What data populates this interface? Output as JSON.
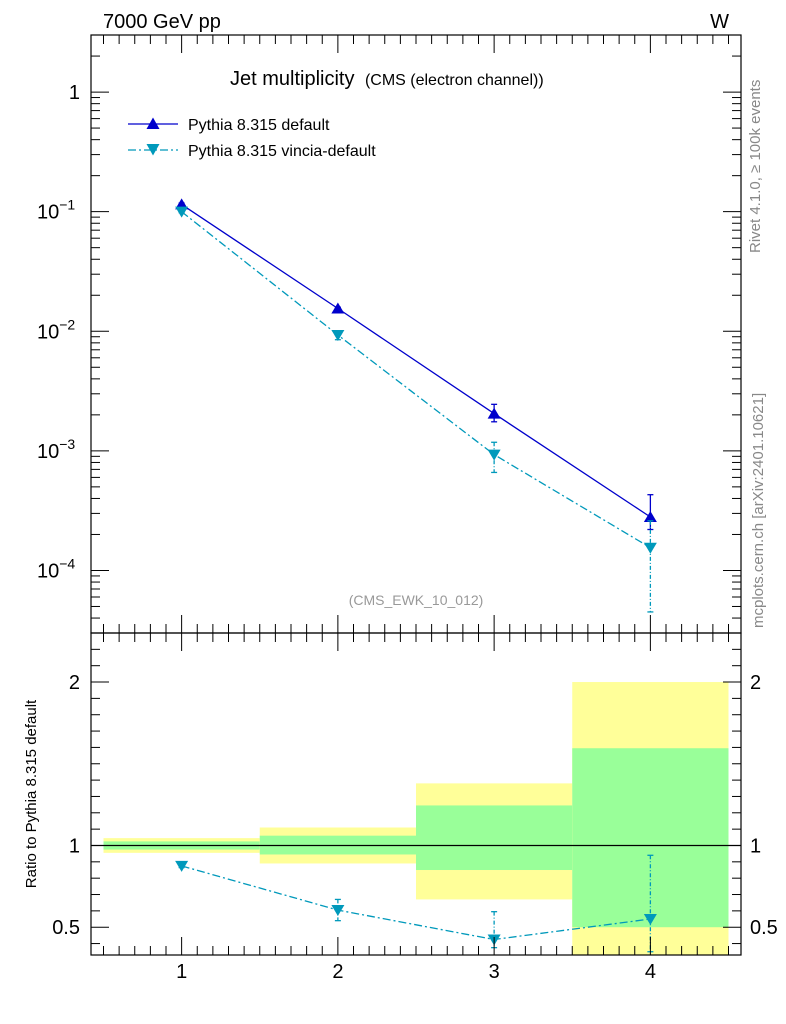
{
  "header": {
    "left": "7000 GeV pp",
    "right": "W"
  },
  "side_labels": {
    "rivet": "Rivet 4.1.0, ≥ 100k events",
    "mcplots": "mcplots.cern.ch [arXiv:2401.10621]"
  },
  "chart_data": [
    {
      "type": "line",
      "title": "Jet multiplicity",
      "subtitle": "(CMS (electron channel))",
      "watermark": "(CMS_EWK_10_012)",
      "xlabel": "",
      "ylabel": "",
      "yscale": "log",
      "xlim": [
        0.42,
        4.58
      ],
      "ylim": [
        3e-05,
        3.0
      ],
      "legend_position": "top-left",
      "y_ticks": [
        {
          "value": 1,
          "label": "1"
        },
        {
          "value": 0.1,
          "base": "10",
          "exp": "−1"
        },
        {
          "value": 0.01,
          "base": "10",
          "exp": "−2"
        },
        {
          "value": 0.001,
          "base": "10",
          "exp": "−3"
        },
        {
          "value": 0.0001,
          "base": "10",
          "exp": "−4"
        }
      ],
      "series": [
        {
          "name": "Pythia 8.315 default",
          "color": "#0000cc",
          "marker": "triangle-up",
          "line_style": "solid",
          "x": [
            1,
            2,
            3,
            4
          ],
          "values": [
            0.115,
            0.0155,
            0.00205,
            0.00028
          ],
          "err_low": [
            0.112,
            0.0151,
            0.00175,
            0.00022
          ],
          "err_high": [
            0.118,
            0.0159,
            0.00245,
            0.00043
          ]
        },
        {
          "name": "Pythia 8.315 vincia-default",
          "color": "#0099bb",
          "marker": "triangle-down",
          "line_style": "dashdot",
          "x": [
            1,
            2,
            3,
            4
          ],
          "values": [
            0.1,
            0.0093,
            0.00093,
            0.000155
          ],
          "err_low": [
            0.098,
            0.0085,
            0.00066,
            4.5e-05
          ],
          "err_high": [
            0.102,
            0.0101,
            0.00118,
            0.00026
          ]
        }
      ]
    },
    {
      "type": "line",
      "title": "",
      "xlabel": "",
      "ylabel": "Ratio to Pythia 8.315 default",
      "xlim": [
        0.42,
        4.58
      ],
      "ylim": [
        0.33,
        2.3
      ],
      "x_ticks": [
        1,
        2,
        3,
        4
      ],
      "y_ticks": [
        {
          "value": 0.5,
          "label": "0.5"
        },
        {
          "value": 1,
          "label": "1"
        },
        {
          "value": 2,
          "label": "2"
        }
      ],
      "reference_line": 1,
      "bands": [
        {
          "x0": 0.5,
          "x1": 1.5,
          "yellow": [
            0.955,
            1.045
          ],
          "green": [
            0.975,
            1.025
          ]
        },
        {
          "x0": 1.5,
          "x1": 2.5,
          "yellow": [
            0.89,
            1.11
          ],
          "green": [
            0.945,
            1.06
          ]
        },
        {
          "x0": 2.5,
          "x1": 3.5,
          "yellow": [
            0.67,
            1.38
          ],
          "green": [
            0.85,
            1.245
          ]
        },
        {
          "x0": 3.5,
          "x1": 4.5,
          "yellow": [
            0.33,
            2.0
          ],
          "green": [
            0.5,
            1.595
          ]
        }
      ],
      "series": [
        {
          "name": "Pythia 8.315 vincia-default",
          "color": "#0099bb",
          "marker": "triangle-down",
          "line_style": "dashdot",
          "x": [
            1,
            2,
            3,
            4
          ],
          "values": [
            0.875,
            0.605,
            0.425,
            0.55
          ],
          "err_low": [
            0.865,
            0.54,
            0.375,
            0.35
          ],
          "err_high": [
            0.885,
            0.67,
            0.595,
            0.94
          ]
        }
      ]
    }
  ]
}
